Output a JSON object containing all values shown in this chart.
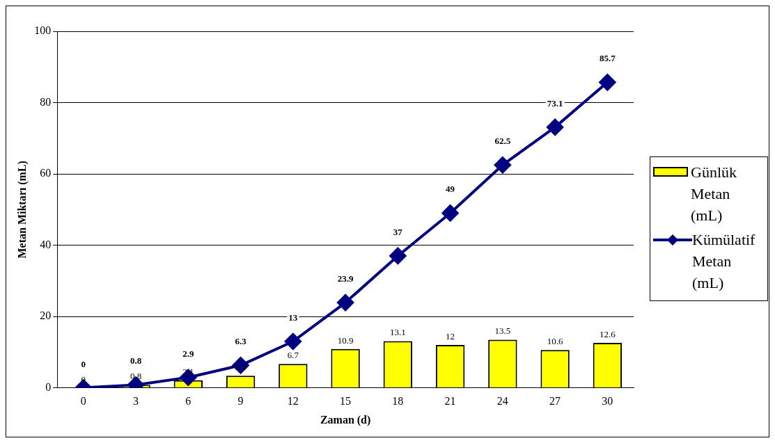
{
  "chart_data": {
    "type": "bar",
    "xlabel": "Zaman (d)",
    "ylabel": "Metan Miktarı (mL)",
    "categories": [
      "0",
      "3",
      "6",
      "9",
      "12",
      "15",
      "18",
      "21",
      "24",
      "27",
      "30"
    ],
    "series": [
      {
        "name": "Günlük Metan (mL)",
        "color": "#ffff00",
        "values": [
          0,
          0.8,
          2.1,
          3.4,
          6.7,
          10.9,
          13.1,
          12,
          13.5,
          10.6,
          12.6
        ]
      },
      {
        "name": "Kümülatif Metan (mL)",
        "type": "line",
        "color": "#000080",
        "marker": "diamond",
        "values": [
          0,
          0.8,
          2.9,
          6.3,
          13,
          23.9,
          37,
          49,
          62.5,
          73.1,
          85.7
        ]
      }
    ],
    "ylim": [
      0,
      100
    ],
    "yticks": [
      0,
      20,
      40,
      60,
      80,
      100
    ],
    "grid": "y",
    "legend": "right",
    "data_labels": true
  }
}
